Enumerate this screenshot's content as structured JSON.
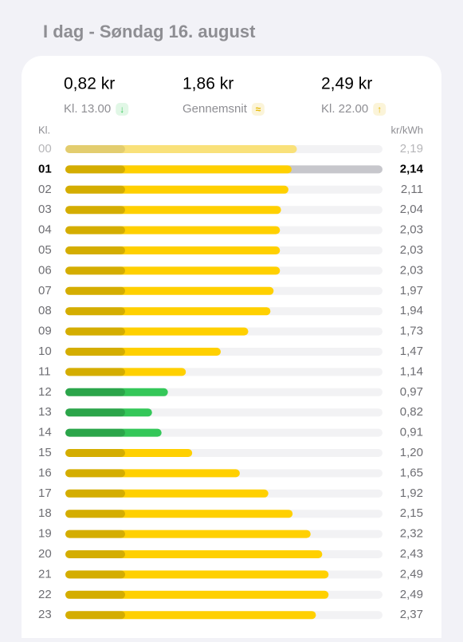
{
  "header": {
    "title": "I dag - Søndag 16. august"
  },
  "stats": [
    {
      "value": "0,82 kr",
      "label": "Kl. 13.00",
      "icon": "↓",
      "icon_color": "#34c759"
    },
    {
      "value": "1,86 kr",
      "label": "Gennemsnit",
      "icon": "≈",
      "icon_color": "#e6b800"
    },
    {
      "value": "2,49 kr",
      "label": "Kl. 22.00",
      "icon": "↑",
      "icon_color": "#e6b800"
    }
  ],
  "chart_data": {
    "type": "bar",
    "orientation": "horizontal",
    "category_label": "Kl.",
    "value_label": "kr/kWh",
    "categories": [
      "00",
      "01",
      "02",
      "03",
      "04",
      "05",
      "06",
      "07",
      "08",
      "09",
      "10",
      "11",
      "12",
      "13",
      "14",
      "15",
      "16",
      "17",
      "18",
      "19",
      "20",
      "21",
      "22",
      "23"
    ],
    "values": [
      2.19,
      2.14,
      2.11,
      2.04,
      2.03,
      2.03,
      2.03,
      1.97,
      1.94,
      1.73,
      1.47,
      1.14,
      0.97,
      0.82,
      0.91,
      1.2,
      1.65,
      1.92,
      2.15,
      2.32,
      2.43,
      2.49,
      2.49,
      2.37
    ],
    "value_labels": [
      "2,19",
      "2,14",
      "2,11",
      "2,04",
      "2,03",
      "2,03",
      "2,03",
      "1,97",
      "1,94",
      "1,73",
      "1,47",
      "1,14",
      "0,97",
      "0,82",
      "0,91",
      "1,20",
      "1,65",
      "1,92",
      "2,15",
      "2,32",
      "2,43",
      "2,49",
      "2,49",
      "2,37"
    ],
    "colors": [
      "#ffd000",
      "#ffd000",
      "#ffd000",
      "#ffd000",
      "#ffd000",
      "#ffd000",
      "#ffd000",
      "#ffd000",
      "#ffd000",
      "#ffd000",
      "#ffd000",
      "#ffd000",
      "#34c759",
      "#34c759",
      "#34c759",
      "#ffd000",
      "#ffd000",
      "#ffd000",
      "#ffd000",
      "#ffd000",
      "#ffd000",
      "#ffd000",
      "#ffd000",
      "#ffd000"
    ],
    "xlim": [
      0,
      3
    ]
  }
}
